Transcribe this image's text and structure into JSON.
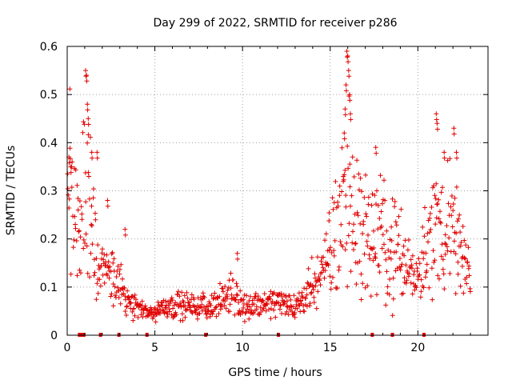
{
  "chart_data": {
    "type": "scatter",
    "title": "Day 299 of 2022, SRMTID for receiver p286",
    "xlabel": "GPS time / hours",
    "ylabel": "SRMTID / TECUs",
    "xlim": [
      0,
      24
    ],
    "ylim": [
      0,
      0.6
    ],
    "x_ticks": [
      0,
      5,
      10,
      15,
      20
    ],
    "x_tick_labels": [
      "0",
      "5",
      "10",
      "15",
      "20"
    ],
    "y_ticks": [
      0,
      0.1,
      0.2,
      0.3,
      0.4,
      0.5,
      0.6
    ],
    "y_tick_labels": [
      "0",
      "0.1",
      "0.2",
      "0.3",
      "0.4",
      "0.5",
      "0.6"
    ],
    "grid": true,
    "marker": "+",
    "color": "#e00000",
    "series": [
      {
        "name": "SRMTID",
        "profile": [
          [
            0.0,
            0.3
          ],
          [
            0.15,
            0.33
          ],
          [
            0.4,
            0.26
          ],
          [
            0.6,
            0.22
          ],
          [
            0.8,
            0.18
          ],
          [
            1.0,
            0.35
          ],
          [
            1.2,
            0.3
          ],
          [
            1.5,
            0.2
          ],
          [
            1.8,
            0.12
          ],
          [
            2.0,
            0.14
          ],
          [
            2.5,
            0.12
          ],
          [
            3.0,
            0.1
          ],
          [
            3.5,
            0.07
          ],
          [
            4.0,
            0.06
          ],
          [
            4.5,
            0.045
          ],
          [
            5.0,
            0.05
          ],
          [
            6.0,
            0.065
          ],
          [
            7.0,
            0.06
          ],
          [
            8.0,
            0.06
          ],
          [
            9.0,
            0.075
          ],
          [
            9.5,
            0.09
          ],
          [
            10.0,
            0.06
          ],
          [
            11.0,
            0.065
          ],
          [
            12.0,
            0.07
          ],
          [
            13.0,
            0.06
          ],
          [
            13.5,
            0.075
          ],
          [
            14.0,
            0.11
          ],
          [
            14.5,
            0.12
          ],
          [
            15.0,
            0.18
          ],
          [
            15.5,
            0.26
          ],
          [
            16.0,
            0.3
          ],
          [
            16.5,
            0.24
          ],
          [
            17.0,
            0.2
          ],
          [
            17.5,
            0.21
          ],
          [
            18.0,
            0.2
          ],
          [
            18.5,
            0.18
          ],
          [
            19.0,
            0.16
          ],
          [
            19.5,
            0.14
          ],
          [
            20.0,
            0.13
          ],
          [
            20.5,
            0.18
          ],
          [
            21.0,
            0.22
          ],
          [
            21.5,
            0.23
          ],
          [
            22.0,
            0.22
          ],
          [
            22.5,
            0.16
          ],
          [
            23.0,
            0.12
          ]
        ],
        "peaks": [
          [
            0.1,
            0.37
          ],
          [
            0.2,
            0.35
          ],
          [
            1.05,
            0.55
          ],
          [
            1.1,
            0.54
          ],
          [
            1.15,
            0.48
          ],
          [
            1.2,
            0.45
          ],
          [
            1.4,
            0.38
          ],
          [
            1.7,
            0.38
          ],
          [
            2.3,
            0.28
          ],
          [
            3.3,
            0.22
          ],
          [
            9.7,
            0.17
          ],
          [
            15.8,
            0.42
          ],
          [
            15.85,
            0.47
          ],
          [
            15.9,
            0.52
          ],
          [
            15.95,
            0.59
          ],
          [
            16.0,
            0.58
          ],
          [
            16.05,
            0.55
          ],
          [
            16.1,
            0.5
          ],
          [
            16.15,
            0.46
          ],
          [
            17.6,
            0.39
          ],
          [
            21.05,
            0.46
          ],
          [
            21.1,
            0.44
          ],
          [
            21.5,
            0.38
          ],
          [
            22.05,
            0.43
          ],
          [
            22.2,
            0.38
          ]
        ]
      }
    ],
    "flag_hours": [
      0.7,
      0.8,
      0.95,
      1.9,
      2.95,
      4.55,
      7.9,
      12.05,
      17.4,
      18.55,
      20.35
    ]
  }
}
